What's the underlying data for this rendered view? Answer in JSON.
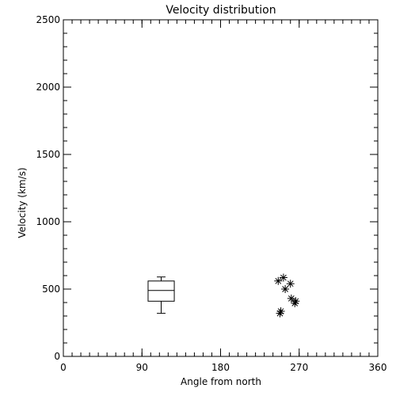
{
  "chart_data": {
    "type": "scatter",
    "title": "Velocity distribution",
    "xlabel": "Angle from north",
    "ylabel": "Velocity (km/s)",
    "xlim": [
      0,
      360
    ],
    "ylim": [
      0,
      2500
    ],
    "x_ticks": [
      {
        "value": 0,
        "label": "0"
      },
      {
        "value": 90,
        "label": "90"
      },
      {
        "value": 180,
        "label": "180"
      },
      {
        "value": 270,
        "label": "270"
      },
      {
        "value": 360,
        "label": "360"
      }
    ],
    "x_minor_step": 10,
    "y_ticks": [
      {
        "value": 0,
        "label": "0"
      },
      {
        "value": 500,
        "label": "500"
      },
      {
        "value": 1000,
        "label": "1000"
      },
      {
        "value": 1500,
        "label": "1500"
      },
      {
        "value": 2000,
        "label": "2000"
      },
      {
        "value": 2500,
        "label": "2500"
      }
    ],
    "y_minor_step": 100,
    "grid": false,
    "boxplot": {
      "x": 112,
      "width": 30,
      "whisker_low": 320,
      "q1": 410,
      "median": 490,
      "q3": 560,
      "whisker_high": 590
    },
    "points": [
      {
        "x": 246,
        "y": 560
      },
      {
        "x": 252,
        "y": 585
      },
      {
        "x": 260,
        "y": 540
      },
      {
        "x": 254,
        "y": 500
      },
      {
        "x": 261,
        "y": 430
      },
      {
        "x": 266,
        "y": 410
      },
      {
        "x": 265,
        "y": 395
      },
      {
        "x": 249,
        "y": 335
      },
      {
        "x": 248,
        "y": 320
      }
    ],
    "marker": "asterisk",
    "color": "#000000"
  }
}
